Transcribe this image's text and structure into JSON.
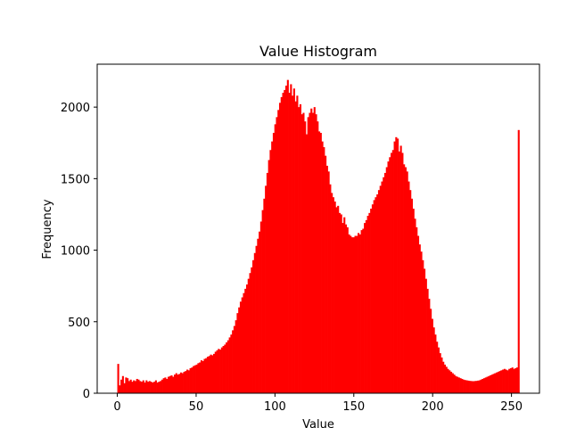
{
  "chart_data": {
    "type": "bar",
    "title": "Value Histogram",
    "xlabel": "Value",
    "ylabel": "Frequency",
    "xlim": [
      -12.75,
      267.75
    ],
    "ylim": [
      0,
      2300
    ],
    "xticks": [
      0,
      50,
      100,
      150,
      200,
      250
    ],
    "yticks": [
      0,
      500,
      1000,
      1500,
      2000
    ],
    "grid": false,
    "bins": 256,
    "bar_color": "#ff0000",
    "values": [
      205,
      55,
      95,
      120,
      70,
      110,
      105,
      85,
      95,
      80,
      90,
      85,
      100,
      95,
      85,
      80,
      90,
      75,
      90,
      80,
      85,
      80,
      75,
      80,
      90,
      75,
      80,
      85,
      95,
      105,
      110,
      100,
      115,
      120,
      125,
      115,
      130,
      140,
      130,
      135,
      145,
      140,
      150,
      155,
      165,
      160,
      175,
      180,
      190,
      195,
      200,
      210,
      215,
      230,
      225,
      240,
      245,
      255,
      260,
      270,
      265,
      275,
      290,
      300,
      310,
      305,
      320,
      330,
      340,
      355,
      370,
      390,
      410,
      440,
      470,
      510,
      560,
      600,
      640,
      670,
      700,
      730,
      760,
      800,
      840,
      880,
      930,
      980,
      1030,
      1080,
      1130,
      1200,
      1280,
      1360,
      1450,
      1540,
      1630,
      1700,
      1760,
      1820,
      1880,
      1930,
      1980,
      2030,
      2070,
      2100,
      2120,
      2150,
      2190,
      2100,
      2160,
      2080,
      2130,
      2040,
      2080,
      2000,
      2020,
      1950,
      1960,
      1900,
      1810,
      1930,
      1960,
      1990,
      1960,
      2000,
      1950,
      1900,
      1830,
      1820,
      1760,
      1720,
      1660,
      1590,
      1550,
      1460,
      1400,
      1370,
      1340,
      1300,
      1310,
      1260,
      1250,
      1190,
      1230,
      1180,
      1160,
      1110,
      1100,
      1090,
      1090,
      1100,
      1100,
      1120,
      1110,
      1140,
      1150,
      1190,
      1210,
      1240,
      1260,
      1290,
      1320,
      1350,
      1370,
      1390,
      1420,
      1450,
      1480,
      1510,
      1540,
      1580,
      1620,
      1650,
      1680,
      1700,
      1760,
      1790,
      1780,
      1690,
      1730,
      1680,
      1600,
      1580,
      1550,
      1480,
      1420,
      1360,
      1290,
      1220,
      1160,
      1100,
      1040,
      990,
      930,
      870,
      800,
      730,
      660,
      590,
      520,
      460,
      410,
      360,
      320,
      280,
      250,
      220,
      200,
      185,
      170,
      160,
      150,
      140,
      130,
      120,
      115,
      110,
      105,
      100,
      95,
      92,
      90,
      88,
      86,
      85,
      84,
      85,
      86,
      88,
      90,
      95,
      100,
      105,
      110,
      115,
      120,
      125,
      130,
      135,
      140,
      145,
      150,
      155,
      160,
      165,
      170,
      165,
      160,
      170,
      175,
      180,
      170,
      175,
      180,
      1840
    ]
  }
}
